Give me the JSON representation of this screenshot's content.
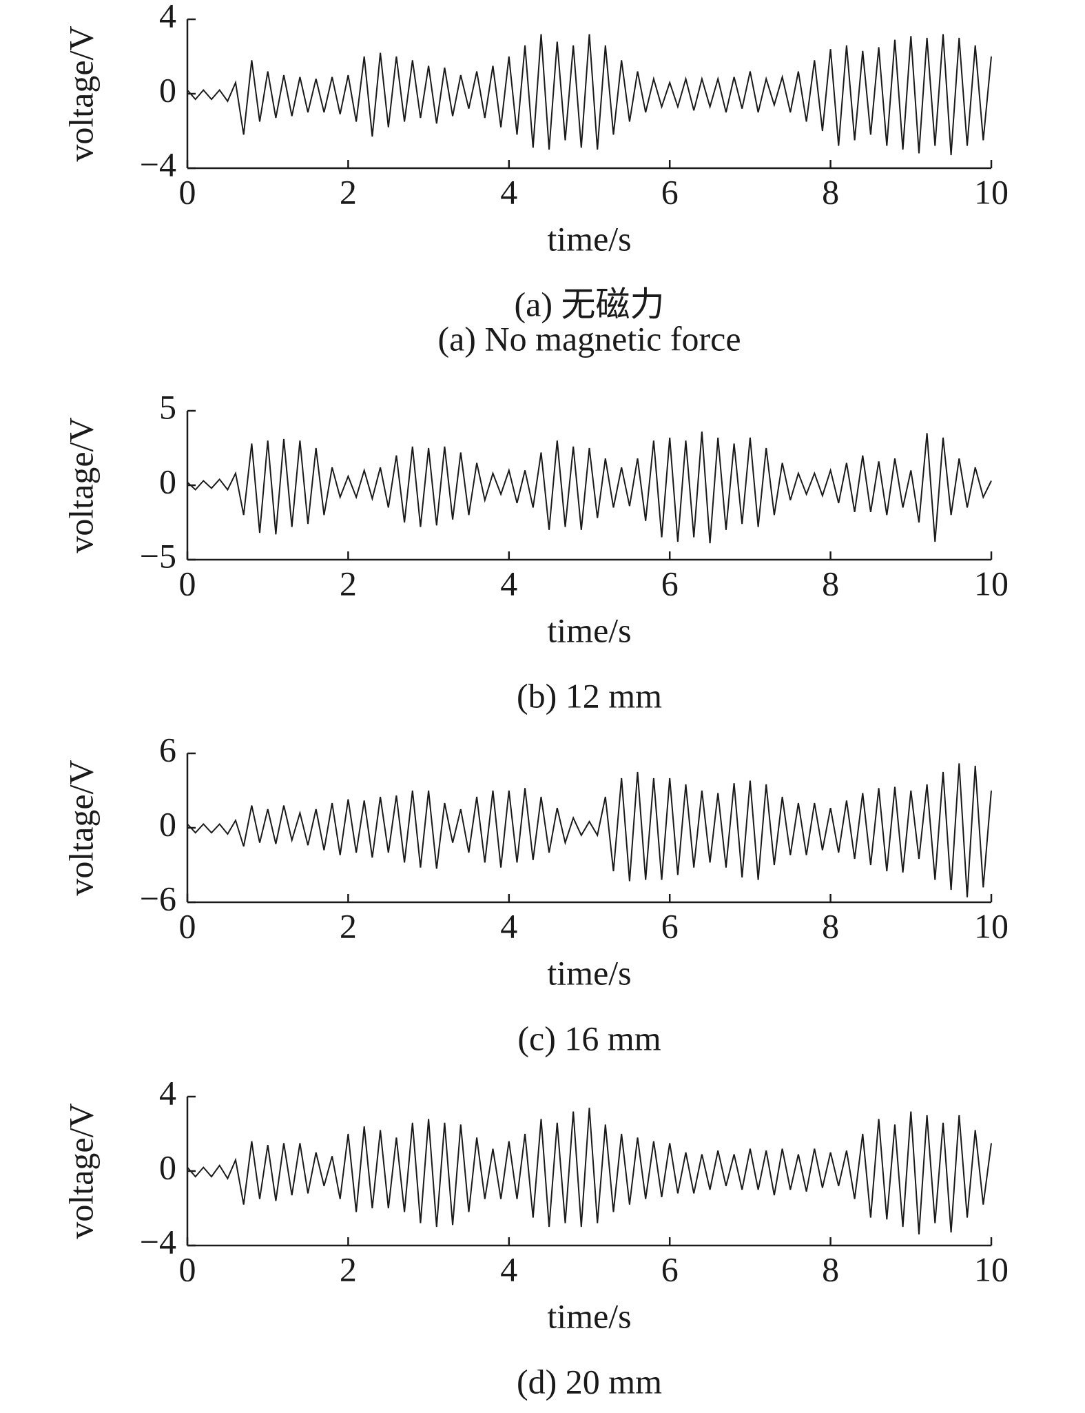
{
  "chart_data": [
    {
      "type": "line",
      "xlabel": "time/s",
      "ylabel": "voltage/V",
      "caption": [
        "(a) 无磁力",
        "(a) No magnetic force"
      ],
      "xlim": [
        0,
        10
      ],
      "xticks": [
        0,
        2,
        4,
        6,
        8,
        10
      ],
      "ylim": [
        -4,
        4
      ],
      "yticks": [
        {
          "value": -4,
          "label": "−4"
        },
        0,
        4
      ],
      "x": [
        0,
        0.1,
        0.2,
        0.3,
        0.4,
        0.5,
        0.6,
        0.7,
        0.8,
        0.9,
        1,
        1.1,
        1.2,
        1.3,
        1.4,
        1.5,
        1.6,
        1.7,
        1.8,
        1.9,
        2,
        2.1,
        2.2,
        2.3,
        2.4,
        2.5,
        2.6,
        2.7,
        2.8,
        2.9,
        3,
        3.1,
        3.2,
        3.3,
        3.4,
        3.5,
        3.6,
        3.7,
        3.8,
        3.9,
        4,
        4.1,
        4.2,
        4.3,
        4.4,
        4.5,
        4.6,
        4.7,
        4.8,
        4.9,
        5,
        5.1,
        5.2,
        5.3,
        5.4,
        5.5,
        5.6,
        5.7,
        5.8,
        5.9,
        6,
        6.1,
        6.2,
        6.3,
        6.4,
        6.5,
        6.6,
        6.7,
        6.8,
        6.9,
        7,
        7.1,
        7.2,
        7.3,
        7.4,
        7.5,
        7.6,
        7.7,
        7.8,
        7.9,
        8,
        8.1,
        8.2,
        8.3,
        8.4,
        8.5,
        8.6,
        8.7,
        8.8,
        8.9,
        9,
        9.1,
        9.2,
        9.3,
        9.4,
        9.5,
        9.6,
        9.7,
        9.8,
        9.9,
        10
      ],
      "series": [
        {
          "color": "#1a1a1a",
          "values": [
            0.2,
            -0.3,
            0.2,
            -0.3,
            0.2,
            -0.4,
            0.6,
            -2.2,
            1.8,
            -1.5,
            1.2,
            -1.3,
            1.0,
            -1.2,
            0.9,
            -1.0,
            0.8,
            -1.0,
            0.9,
            -1.1,
            1.0,
            -1.5,
            2.0,
            -2.3,
            2.2,
            -1.8,
            2.0,
            -1.5,
            1.8,
            -1.3,
            1.5,
            -1.6,
            1.4,
            -1.2,
            1.0,
            -0.8,
            1.2,
            -1.3,
            1.5,
            -1.8,
            2.0,
            -2.2,
            2.6,
            -2.9,
            3.2,
            -3.0,
            2.8,
            -2.5,
            2.6,
            -2.9,
            3.2,
            -3.0,
            2.6,
            -2.2,
            1.8,
            -1.5,
            1.2,
            -1.0,
            0.8,
            -0.7,
            0.6,
            -0.7,
            0.8,
            -0.9,
            0.8,
            -0.7,
            0.8,
            -1.0,
            0.9,
            -0.8,
            1.2,
            -1.0,
            0.8,
            -0.6,
            0.9,
            -1.0,
            1.2,
            -1.5,
            1.8,
            -2.0,
            2.4,
            -2.8,
            2.6,
            -2.5,
            2.3,
            -2.2,
            2.5,
            -2.8,
            2.9,
            -3.0,
            3.1,
            -3.2,
            3.0,
            -2.8,
            3.2,
            -3.3,
            3.0,
            -2.8,
            2.6,
            -2.5,
            2.0
          ]
        }
      ]
    },
    {
      "type": "line",
      "xlabel": "time/s",
      "ylabel": "voltage/V",
      "caption": [
        "(b) 12 mm"
      ],
      "xlim": [
        0,
        10
      ],
      "xticks": [
        0,
        2,
        4,
        6,
        8,
        10
      ],
      "ylim": [
        -5,
        5
      ],
      "yticks": [
        {
          "value": -5,
          "label": "−5"
        },
        0,
        5
      ],
      "x": [
        0,
        0.1,
        0.2,
        0.3,
        0.4,
        0.5,
        0.6,
        0.7,
        0.8,
        0.9,
        1,
        1.1,
        1.2,
        1.3,
        1.4,
        1.5,
        1.6,
        1.7,
        1.8,
        1.9,
        2,
        2.1,
        2.2,
        2.3,
        2.4,
        2.5,
        2.6,
        2.7,
        2.8,
        2.9,
        3,
        3.1,
        3.2,
        3.3,
        3.4,
        3.5,
        3.6,
        3.7,
        3.8,
        3.9,
        4,
        4.1,
        4.2,
        4.3,
        4.4,
        4.5,
        4.6,
        4.7,
        4.8,
        4.9,
        5,
        5.1,
        5.2,
        5.3,
        5.4,
        5.5,
        5.6,
        5.7,
        5.8,
        5.9,
        6,
        6.1,
        6.2,
        6.3,
        6.4,
        6.5,
        6.6,
        6.7,
        6.8,
        6.9,
        7,
        7.1,
        7.2,
        7.3,
        7.4,
        7.5,
        7.6,
        7.7,
        7.8,
        7.9,
        8,
        8.1,
        8.2,
        8.3,
        8.4,
        8.5,
        8.6,
        8.7,
        8.8,
        8.9,
        9,
        9.1,
        9.2,
        9.3,
        9.4,
        9.5,
        9.6,
        9.7,
        9.8,
        9.9,
        10
      ],
      "series": [
        {
          "color": "#1a1a1a",
          "values": [
            0.2,
            -0.3,
            0.3,
            -0.2,
            0.4,
            -0.3,
            0.8,
            -2.0,
            2.8,
            -3.2,
            3.0,
            -3.3,
            3.1,
            -2.8,
            3.0,
            -2.6,
            2.5,
            -2.0,
            1.2,
            -0.8,
            0.6,
            -0.8,
            1.0,
            -0.9,
            1.2,
            -1.5,
            2.0,
            -2.5,
            2.6,
            -2.8,
            2.5,
            -2.7,
            2.6,
            -2.3,
            2.2,
            -2.0,
            1.5,
            -1.0,
            0.8,
            -0.6,
            1.0,
            -1.2,
            1.0,
            -1.5,
            2.2,
            -3.0,
            3.0,
            -2.8,
            2.6,
            -3.0,
            2.5,
            -2.2,
            1.8,
            -1.5,
            1.2,
            -1.4,
            1.8,
            -2.4,
            3.0,
            -3.5,
            3.2,
            -3.8,
            3.0,
            -3.5,
            3.6,
            -3.9,
            3.2,
            -3.0,
            2.8,
            -2.6,
            3.2,
            -2.8,
            2.5,
            -2.0,
            1.5,
            -1.0,
            0.8,
            -0.6,
            0.8,
            -0.7,
            1.0,
            -1.2,
            1.5,
            -1.8,
            2.0,
            -1.8,
            1.6,
            -2.0,
            1.8,
            -1.5,
            1.0,
            -2.5,
            3.5,
            -3.8,
            3.2,
            -2.0,
            1.8,
            -1.5,
            1.2,
            -0.8,
            0.3
          ]
        }
      ]
    },
    {
      "type": "line",
      "xlabel": "time/s",
      "ylabel": "voltage/V",
      "caption": [
        "(c) 16 mm"
      ],
      "xlim": [
        0,
        10
      ],
      "xticks": [
        0,
        2,
        4,
        6,
        8,
        10
      ],
      "ylim": [
        -6,
        6
      ],
      "yticks": [
        {
          "value": -6,
          "label": "−6"
        },
        0,
        6
      ],
      "x": [
        0,
        0.1,
        0.2,
        0.3,
        0.4,
        0.5,
        0.6,
        0.7,
        0.8,
        0.9,
        1,
        1.1,
        1.2,
        1.3,
        1.4,
        1.5,
        1.6,
        1.7,
        1.8,
        1.9,
        2,
        2.1,
        2.2,
        2.3,
        2.4,
        2.5,
        2.6,
        2.7,
        2.8,
        2.9,
        3,
        3.1,
        3.2,
        3.3,
        3.4,
        3.5,
        3.6,
        3.7,
        3.8,
        3.9,
        4,
        4.1,
        4.2,
        4.3,
        4.4,
        4.5,
        4.6,
        4.7,
        4.8,
        4.9,
        5,
        5.1,
        5.2,
        5.3,
        5.4,
        5.5,
        5.6,
        5.7,
        5.8,
        5.9,
        6,
        6.1,
        6.2,
        6.3,
        6.4,
        6.5,
        6.6,
        6.7,
        6.8,
        6.9,
        7,
        7.1,
        7.2,
        7.3,
        7.4,
        7.5,
        7.6,
        7.7,
        7.8,
        7.9,
        8,
        8.1,
        8.2,
        8.3,
        8.4,
        8.5,
        8.6,
        8.7,
        8.8,
        8.9,
        9,
        9.1,
        9.2,
        9.3,
        9.4,
        9.5,
        9.6,
        9.7,
        9.8,
        9.9,
        10
      ],
      "series": [
        {
          "color": "#1a1a1a",
          "values": [
            0.3,
            -0.4,
            0.3,
            -0.4,
            0.3,
            -0.5,
            0.6,
            -1.5,
            1.8,
            -1.2,
            1.5,
            -1.3,
            1.8,
            -1.0,
            1.2,
            -1.4,
            1.5,
            -1.8,
            2.0,
            -2.2,
            2.3,
            -2.0,
            2.2,
            -2.4,
            2.5,
            -2.0,
            2.6,
            -2.8,
            3.0,
            -3.2,
            3.0,
            -3.3,
            2.0,
            -1.2,
            1.5,
            -2.0,
            2.5,
            -2.8,
            3.0,
            -3.2,
            3.0,
            -2.8,
            3.2,
            -2.6,
            2.5,
            -2.0,
            1.6,
            -1.2,
            0.8,
            -0.6,
            0.5,
            -0.6,
            2.5,
            -3.5,
            4.0,
            -4.3,
            4.5,
            -4.2,
            4.0,
            -4.2,
            4.0,
            -3.8,
            3.5,
            -3.2,
            3.0,
            -2.8,
            2.8,
            -3.2,
            3.6,
            -4.0,
            3.8,
            -4.2,
            3.5,
            -3.0,
            2.5,
            -2.2,
            2.0,
            -2.2,
            2.0,
            -1.8,
            1.6,
            -2.0,
            2.2,
            -2.5,
            2.8,
            -3.0,
            3.2,
            -3.5,
            3.3,
            -3.6,
            3.0,
            -2.5,
            3.5,
            -4.2,
            4.5,
            -5.0,
            5.2,
            -5.6,
            5.0,
            -4.8,
            3.0
          ]
        }
      ]
    },
    {
      "type": "line",
      "xlabel": "time/s",
      "ylabel": "voltage/V",
      "caption": [
        "(d) 20 mm"
      ],
      "xlim": [
        0,
        10
      ],
      "xticks": [
        0,
        2,
        4,
        6,
        8,
        10
      ],
      "ylim": [
        -4,
        4
      ],
      "yticks": [
        {
          "value": -4,
          "label": "−4"
        },
        0,
        4
      ],
      "x": [
        0,
        0.1,
        0.2,
        0.3,
        0.4,
        0.5,
        0.6,
        0.7,
        0.8,
        0.9,
        1,
        1.1,
        1.2,
        1.3,
        1.4,
        1.5,
        1.6,
        1.7,
        1.8,
        1.9,
        2,
        2.1,
        2.2,
        2.3,
        2.4,
        2.5,
        2.6,
        2.7,
        2.8,
        2.9,
        3,
        3.1,
        3.2,
        3.3,
        3.4,
        3.5,
        3.6,
        3.7,
        3.8,
        3.9,
        4,
        4.1,
        4.2,
        4.3,
        4.4,
        4.5,
        4.6,
        4.7,
        4.8,
        4.9,
        5,
        5.1,
        5.2,
        5.3,
        5.4,
        5.5,
        5.6,
        5.7,
        5.8,
        5.9,
        6,
        6.1,
        6.2,
        6.3,
        6.4,
        6.5,
        6.6,
        6.7,
        6.8,
        6.9,
        7,
        7.1,
        7.2,
        7.3,
        7.4,
        7.5,
        7.6,
        7.7,
        7.8,
        7.9,
        8,
        8.1,
        8.2,
        8.3,
        8.4,
        8.5,
        8.6,
        8.7,
        8.8,
        8.9,
        9,
        9.1,
        9.2,
        9.3,
        9.4,
        9.5,
        9.6,
        9.7,
        9.8,
        9.9,
        10
      ],
      "series": [
        {
          "color": "#1a1a1a",
          "values": [
            0.2,
            -0.3,
            0.2,
            -0.3,
            0.3,
            -0.4,
            0.6,
            -1.8,
            1.6,
            -1.5,
            1.4,
            -1.6,
            1.5,
            -1.3,
            1.5,
            -1.2,
            1.0,
            -0.8,
            0.8,
            -1.5,
            2.0,
            -2.2,
            2.4,
            -2.0,
            2.2,
            -2.0,
            1.8,
            -2.2,
            2.6,
            -2.8,
            2.8,
            -3.0,
            2.6,
            -2.9,
            2.5,
            -2.2,
            1.8,
            -1.5,
            1.2,
            -1.5,
            1.6,
            -1.5,
            2.0,
            -2.5,
            2.8,
            -3.0,
            2.6,
            -2.8,
            3.2,
            -3.0,
            3.4,
            -2.8,
            2.5,
            -2.2,
            2.0,
            -1.8,
            1.8,
            -1.5,
            1.6,
            -1.4,
            1.5,
            -1.2,
            1.0,
            -1.2,
            0.9,
            -1.0,
            1.1,
            -0.8,
            0.9,
            -1.0,
            1.2,
            -1.0,
            1.1,
            -1.3,
            1.2,
            -1.0,
            0.9,
            -1.1,
            1.2,
            -0.9,
            1.0,
            -0.8,
            1.1,
            -1.5,
            2.0,
            -2.5,
            2.8,
            -2.6,
            2.5,
            -3.0,
            3.2,
            -3.4,
            3.0,
            -2.8,
            2.6,
            -3.3,
            3.0,
            -2.5,
            2.2,
            -1.8,
            1.5
          ]
        }
      ]
    }
  ]
}
